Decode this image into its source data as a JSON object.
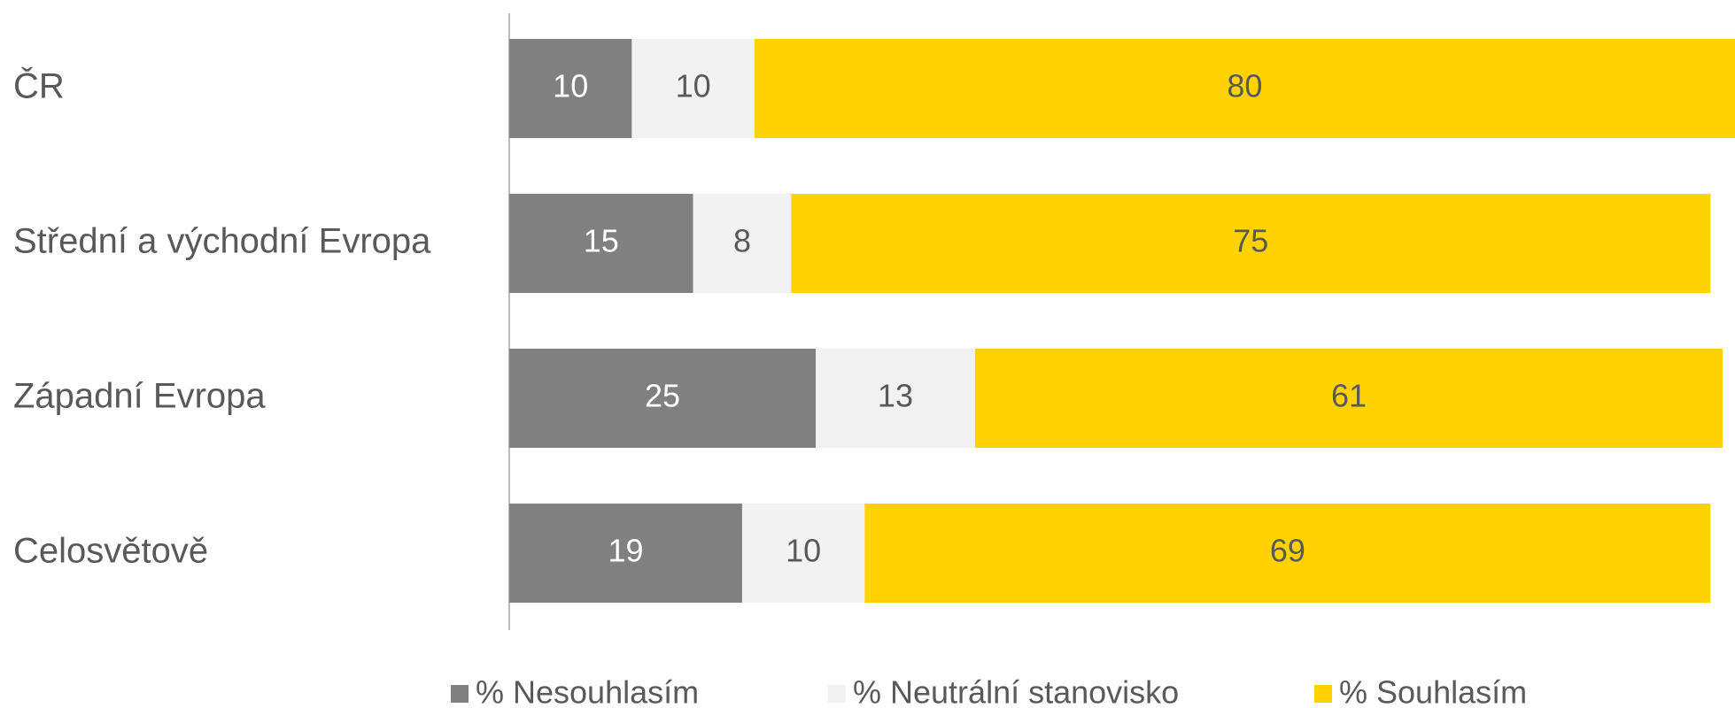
{
  "chart_data": {
    "type": "stacked-bar",
    "categories": [
      "ČR",
      "Střední a východní Evropa",
      "Západní Evropa",
      "Celosvětově"
    ],
    "series": [
      {
        "name": "% Nesouhlasím",
        "color": "#808080",
        "values": [
          10,
          15,
          25,
          19
        ]
      },
      {
        "name": "% Neutrální stanovisko",
        "color": "#f2f2f2",
        "values": [
          10,
          8,
          13,
          10
        ]
      },
      {
        "name": "% Souhlasím",
        "color": "#ffd200",
        "values": [
          80,
          75,
          61,
          69
        ]
      }
    ],
    "xlim": [
      0,
      100
    ],
    "legend": "bottom"
  }
}
